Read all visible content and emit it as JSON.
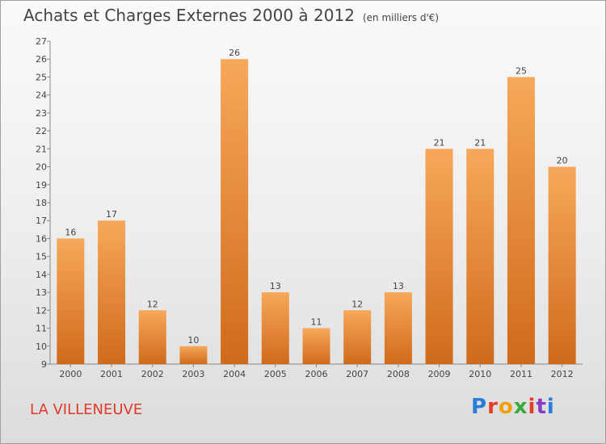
{
  "title": "Achats et Charges Externes 2000 à 2012",
  "subtitle": "(en milliers d'€)",
  "town": "LA VILLENEUVE",
  "logo_text": "Proxiti",
  "colors": {
    "bar_top": "#f7a85a",
    "bar_bottom": "#d06a1a",
    "town": "#e03a2a"
  },
  "chart_data": {
    "type": "bar",
    "categories": [
      "2000",
      "2001",
      "2002",
      "2003",
      "2004",
      "2005",
      "2006",
      "2007",
      "2008",
      "2009",
      "2010",
      "2011",
      "2012"
    ],
    "values": [
      16,
      17,
      12,
      10,
      26,
      13,
      11,
      12,
      13,
      21,
      21,
      25,
      20
    ],
    "ylim": [
      9,
      27
    ],
    "yticks": [
      9,
      10,
      11,
      12,
      13,
      14,
      15,
      16,
      17,
      18,
      19,
      20,
      21,
      22,
      23,
      24,
      25,
      26,
      27
    ],
    "grid": false,
    "title": "Achats et Charges Externes 2000 à 2012",
    "xlabel": "",
    "ylabel": ""
  }
}
